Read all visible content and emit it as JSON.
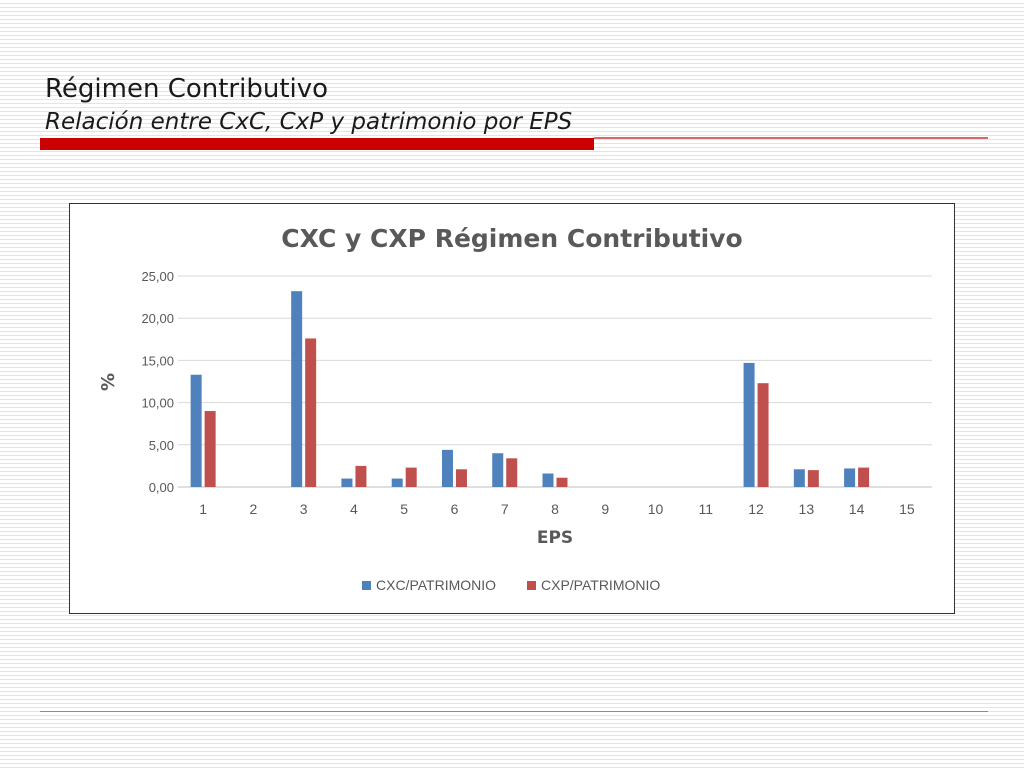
{
  "slide": {
    "title": "Régimen Contributivo",
    "subtitle": "Relación entre CxC, CxP y patrimonio por EPS",
    "accent_color": "#cc0000"
  },
  "chart_data": {
    "type": "bar",
    "title": "CXC y CXP Régimen Contributivo",
    "xlabel": "EPS",
    "ylabel": "%",
    "categories": [
      "1",
      "2",
      "3",
      "4",
      "5",
      "6",
      "7",
      "8",
      "9",
      "10",
      "11",
      "12",
      "13",
      "14",
      "15"
    ],
    "series": [
      {
        "name": "CXC/PATRIMONIO",
        "color": "#4f81bd",
        "values": [
          13.3,
          0,
          23.2,
          1.0,
          1.0,
          4.4,
          4.0,
          1.6,
          0,
          0,
          0,
          14.7,
          2.1,
          2.2,
          0
        ]
      },
      {
        "name": "CXP/PATRIMONIO",
        "color": "#c0504d",
        "values": [
          9.0,
          0,
          17.6,
          2.5,
          2.3,
          2.1,
          3.4,
          1.1,
          0,
          0,
          0,
          12.3,
          2.0,
          2.3,
          0
        ]
      }
    ],
    "yticks": [
      "0,00",
      "5,00",
      "10,00",
      "15,00",
      "20,00",
      "25,00"
    ],
    "ylim": [
      0,
      25
    ],
    "grid": true,
    "legend_position": "bottom"
  }
}
